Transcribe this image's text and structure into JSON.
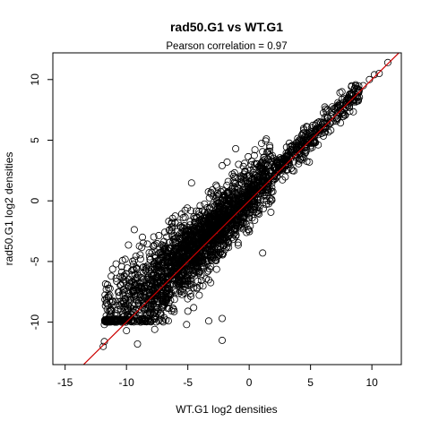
{
  "chart_data": {
    "type": "scatter",
    "title": "rad50.G1 vs WT.G1",
    "subtitle": "Pearson correlation =  0.97",
    "xlabel": "WT.G1 log2 densities",
    "ylabel": "rad50.G1 log2 densities",
    "xlim": [
      -16,
      12.4
    ],
    "ylim": [
      -13.5,
      12.2
    ],
    "x_ticks": [
      -15,
      -10,
      -5,
      0,
      5,
      10
    ],
    "y_ticks": [
      -10,
      -5,
      0,
      5,
      10
    ],
    "x_tick_labels": [
      "-15",
      "-10",
      "-5",
      "0",
      "5",
      "10"
    ],
    "y_tick_labels": [
      "-10",
      "-5",
      "0",
      "5",
      "10"
    ],
    "grid": false,
    "marker": "open-circle",
    "point_color": "#000000",
    "fit_line": {
      "slope": 1.0,
      "intercept": 0.0,
      "color": "#cc0000"
    },
    "series": [
      {
        "values": [
          {
            "x": 11.3,
            "y": 11.4
          },
          {
            "x": 10.6,
            "y": 10.5
          },
          {
            "x": 10.2,
            "y": 10.4
          },
          {
            "x": 9.8,
            "y": 10.0
          },
          {
            "x": 9.3,
            "y": 9.5
          },
          {
            "x": 8.9,
            "y": 8.9
          },
          {
            "x": 8.5,
            "y": 8.7
          },
          {
            "x": 8.1,
            "y": 8.3
          },
          {
            "x": 7.6,
            "y": 7.9
          },
          {
            "x": 7.2,
            "y": 7.6
          },
          {
            "x": 6.8,
            "y": 7.1
          },
          {
            "x": 6.4,
            "y": 6.9
          },
          {
            "x": 6.0,
            "y": 6.4
          },
          {
            "x": 5.7,
            "y": 6.0
          },
          {
            "x": 5.4,
            "y": 6.2
          },
          {
            "x": 5.0,
            "y": 5.5
          },
          {
            "x": 4.6,
            "y": 5.0
          },
          {
            "x": 4.3,
            "y": 4.9
          },
          {
            "x": 3.9,
            "y": 4.5
          },
          {
            "x": 3.5,
            "y": 4.2
          },
          {
            "x": 3.2,
            "y": 3.8
          },
          {
            "x": 2.8,
            "y": 3.5
          },
          {
            "x": 2.5,
            "y": 3.1
          },
          {
            "x": 2.1,
            "y": 2.7
          },
          {
            "x": 1.7,
            "y": 2.4
          },
          {
            "x": 1.4,
            "y": 2.0
          },
          {
            "x": 1.0,
            "y": 1.7
          },
          {
            "x": 0.6,
            "y": 1.3
          },
          {
            "x": 0.3,
            "y": 0.9
          },
          {
            "x": -0.1,
            "y": 0.6
          },
          {
            "x": 1.4,
            "y": 5.1
          },
          {
            "x": -1.8,
            "y": 3.2
          },
          {
            "x": -2.7,
            "y": 1.3
          },
          {
            "x": -3.0,
            "y": 0.9
          },
          {
            "x": -4.0,
            "y": -0.4
          },
          {
            "x": -5.8,
            "y": -1.8
          },
          {
            "x": -6.2,
            "y": -3.4
          },
          {
            "x": -7.0,
            "y": -4.2
          },
          {
            "x": -7.7,
            "y": -5.1
          },
          {
            "x": -8.4,
            "y": -5.6
          },
          {
            "x": -9.1,
            "y": -6.3
          },
          {
            "x": -9.8,
            "y": -7.0
          },
          {
            "x": -10.3,
            "y": -7.6
          },
          {
            "x": -10.9,
            "y": -8.3
          },
          {
            "x": -11.5,
            "y": -8.6
          },
          {
            "x": -11.0,
            "y": -9.7
          },
          {
            "x": -11.8,
            "y": -10.2
          },
          {
            "x": -11.8,
            "y": -11.6
          },
          {
            "x": -11.9,
            "y": -12.0
          },
          {
            "x": -10.0,
            "y": -10.7
          },
          {
            "x": -9.1,
            "y": -11.8
          },
          {
            "x": -7.7,
            "y": -10.6
          },
          {
            "x": -5.0,
            "y": -9.1
          },
          {
            "x": -5.1,
            "y": -10.2
          },
          {
            "x": -3.3,
            "y": -9.9
          },
          {
            "x": -2.2,
            "y": -9.7
          },
          {
            "x": -2.2,
            "y": -11.5
          },
          {
            "x": -8.7,
            "y": -3.0
          },
          {
            "x": -6.5,
            "y": -2.4
          },
          {
            "x": -4.8,
            "y": -1.7
          },
          {
            "x": -2.2,
            "y": 2.9
          },
          {
            "x": -1.1,
            "y": 4.3
          },
          {
            "x": 0.5,
            "y": 1.0
          },
          {
            "x": 1.1,
            "y": -4.3
          },
          {
            "x": 1.5,
            "y": 1.8
          },
          {
            "x": 4.9,
            "y": 3.2
          },
          {
            "x": 4.1,
            "y": 5.0
          },
          {
            "x": -0.6,
            "y": -2.1
          },
          {
            "x": -1.9,
            "y": -3.0
          },
          {
            "x": -3.9,
            "y": -4.6
          },
          {
            "x": -6.0,
            "y": -7.5
          },
          {
            "x": -8.0,
            "y": -8.7
          },
          {
            "x": -2.9,
            "y": -1.2
          },
          {
            "x": -0.9,
            "y": -0.4
          },
          {
            "x": 2.2,
            "y": 2.6
          }
        ]
      }
    ]
  }
}
